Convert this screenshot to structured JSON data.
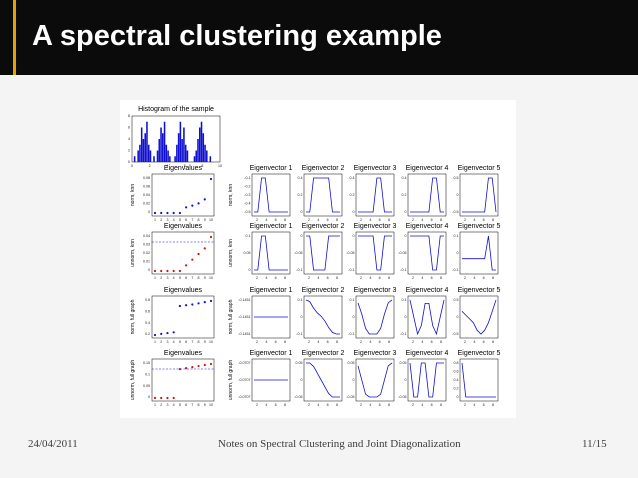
{
  "slide": {
    "title": "A spectral clustering example",
    "footer_date": "24/04/2011",
    "footer_notes": "Notes on Spectral Clustering and Joint Diagonalization",
    "footer_page": "11/15"
  },
  "colors": {
    "accent": "#e8a100",
    "header_bg": "#0b0b0b",
    "plot_blue": "#1010d0",
    "plot_red": "#d01010"
  },
  "figure": {
    "histogram": {
      "title": "Histogram of the sample",
      "x_ticks": [
        "0",
        "2",
        "4",
        "6",
        "8",
        "10"
      ],
      "y_ticks": [
        "0",
        "2",
        "4",
        "6",
        "8"
      ],
      "counts": [
        0,
        1,
        0,
        2,
        3,
        6,
        4,
        5,
        7,
        3,
        2,
        0,
        1,
        0,
        2,
        4,
        6,
        5,
        7,
        3,
        2,
        1,
        0,
        0,
        1,
        3,
        5,
        7,
        4,
        6,
        3,
        2,
        0,
        0,
        0,
        1,
        2,
        4,
        6,
        7,
        5,
        3,
        2,
        0,
        1,
        0,
        0,
        0,
        0,
        0
      ]
    },
    "rows": [
      {
        "ylabel_eig": "norm, knn",
        "ylabel_vec": "norm, knn",
        "eig_title": "Eigenvalues",
        "eig_yticks": [
          "0.08",
          "0.06",
          "0.04",
          "0.02",
          "0"
        ],
        "eig_values": [
          0.0,
          0.0,
          0.0,
          0.0,
          0.0,
          0.01,
          0.013,
          0.017,
          0.024,
          0.06
        ],
        "eig_color": "blue",
        "vec_titles": [
          "Eigenvector 1",
          "Eigenvector 2",
          "Eigenvector 3",
          "Eigenvector 4",
          "Eigenvector 5"
        ],
        "vec_yticks": [
          [
            "-0.1",
            "-0.2",
            "-0.3",
            "-0.4",
            "-0.5"
          ],
          [
            "0.4",
            "0.2",
            "0"
          ],
          [
            "0.4",
            "0.2",
            "0"
          ],
          [
            "0.4",
            "0.2",
            "0"
          ],
          [
            "0.5",
            "0",
            "-0.5"
          ]
        ],
        "vec_x_ticks": [
          "2",
          "4",
          "6",
          "8"
        ],
        "vectors": [
          [
            -0.55,
            -0.55,
            -0.1,
            -0.1,
            -0.55,
            -0.55,
            -0.55,
            -0.55,
            -0.55,
            -0.55
          ],
          [
            0,
            0,
            0.4,
            0.4,
            0.4,
            0.4,
            0.4,
            0,
            0,
            0
          ],
          [
            0,
            0,
            0,
            0,
            0,
            0.4,
            0.4,
            0,
            0,
            0
          ],
          [
            0,
            0,
            0,
            0,
            0,
            0,
            0.4,
            0.4,
            0,
            0
          ],
          [
            0,
            0,
            0,
            0,
            0,
            0,
            0,
            0.5,
            0.5,
            0
          ]
        ]
      },
      {
        "ylabel_eig": "unnorm, knn",
        "ylabel_vec": "unnorm, knn",
        "eig_title": "Eigenvalues",
        "eig_yticks": [
          "0.04",
          "0.03",
          "0.02",
          "0.01",
          "0"
        ],
        "eig_values": [
          0.0,
          0.0,
          0.0,
          0.0,
          0.0,
          0.001,
          0.002,
          0.003,
          0.004,
          0.006
        ],
        "eig_color": "red",
        "vec_titles": [
          "Eigenvector 1",
          "Eigenvector 2",
          "Eigenvector 3",
          "Eigenvector 4",
          "Eigenvector 5"
        ],
        "vec_yticks": [
          [
            "0.1",
            "0.05",
            "0"
          ],
          [
            "0",
            "-0.05",
            "-0.1"
          ],
          [
            "0",
            "-0.05",
            "-0.1"
          ],
          [
            "0",
            "-0.05",
            "-0.1"
          ],
          [
            "0.1",
            "0",
            "-0.1"
          ]
        ],
        "vec_x_ticks": [
          "2",
          "4",
          "6",
          "8"
        ],
        "vectors": [
          [
            0,
            0,
            0.1,
            0.1,
            0,
            0,
            0,
            0,
            0,
            0
          ],
          [
            0,
            0,
            -0.1,
            -0.1,
            -0.1,
            -0.1,
            0,
            0,
            0,
            0
          ],
          [
            0,
            0,
            0,
            0,
            0,
            -0.1,
            -0.1,
            0,
            0,
            0
          ],
          [
            0,
            0,
            0,
            0,
            0,
            0,
            -0.1,
            -0.1,
            0,
            0
          ],
          [
            0,
            0,
            0,
            0,
            0,
            0,
            0,
            0.1,
            -0.05,
            -0.05
          ]
        ]
      },
      {
        "ylabel_eig": "norm, full graph",
        "ylabel_vec": "norm, full graph",
        "eig_title": "Eigenvalues",
        "eig_yticks": [
          "0.8",
          "0.6",
          "0.4",
          "0.2"
        ],
        "eig_values": [
          0.0,
          0.03,
          0.05,
          0.07,
          0.75,
          0.77,
          0.79,
          0.82,
          0.85,
          0.88
        ],
        "eig_color": "blue",
        "vec_titles": [
          "Eigenvector 1",
          "Eigenvector 2",
          "Eigenvector 3",
          "Eigenvector 4",
          "Eigenvector 5"
        ],
        "vec_yticks": [
          [
            "-0.1451",
            "-0.1451",
            "-0.1451"
          ],
          [
            "0.1",
            "0",
            "-0.1"
          ],
          [
            "0.1",
            "0",
            "-0.1"
          ],
          [
            "0.1",
            "0",
            "-0.1"
          ],
          [
            "0.5",
            "0",
            "-0.5"
          ]
        ],
        "vec_x_ticks": [
          "2",
          "4",
          "6",
          "8"
        ],
        "vectors": [
          [
            -0.1451,
            -0.1451,
            -0.1451,
            -0.1451,
            -0.1451,
            -0.1451,
            -0.1451,
            -0.1451,
            -0.1451,
            -0.1451
          ],
          [
            0.1,
            0.09,
            0.05,
            0.02,
            0,
            -0.03,
            -0.07,
            -0.1,
            -0.11,
            -0.11
          ],
          [
            0.1,
            0.02,
            -0.08,
            -0.12,
            -0.12,
            -0.12,
            -0.08,
            0.02,
            0.1,
            0.12
          ],
          [
            0.1,
            0.0,
            -0.1,
            -0.05,
            0.08,
            0.08,
            -0.05,
            -0.1,
            0.0,
            0.1
          ],
          [
            0.2,
            0.1,
            0.0,
            -0.1,
            -0.3,
            -0.4,
            -0.3,
            -0.1,
            0.2,
            0.5
          ]
        ]
      },
      {
        "ylabel_eig": "unnorm, full graph",
        "ylabel_vec": "unnorm, full graph",
        "eig_title": "Eigenvalues",
        "eig_yticks": [
          "0.15",
          "0.1",
          "0.05",
          "0"
        ],
        "eig_values": [
          0.0,
          0.0,
          0.0,
          0.0,
          0.14,
          0.145,
          0.15,
          0.155,
          0.16,
          0.165
        ],
        "eig_color": "red",
        "vec_titles": [
          "Eigenvector 1",
          "Eigenvector 2",
          "Eigenvector 3",
          "Eigenvector 4",
          "Eigenvector 5"
        ],
        "vec_yticks": [
          [
            "-0.0707",
            "-0.0707",
            "-0.0707"
          ],
          [
            "0.05",
            "0",
            "-0.05"
          ],
          [
            "0.05",
            "0",
            "-0.05"
          ],
          [
            "0.05",
            "0",
            "-0.05"
          ],
          [
            "0.8",
            "0.6",
            "0.4",
            "0.2",
            "0"
          ]
        ],
        "vec_x_ticks": [
          "2",
          "4",
          "6",
          "8"
        ],
        "vectors": [
          [
            -0.0707,
            -0.0707,
            -0.0707,
            -0.0707,
            -0.0707,
            -0.0707,
            -0.0707,
            -0.0707,
            -0.0707,
            -0.0707
          ],
          [
            0.05,
            0.05,
            0.04,
            0.02,
            0,
            -0.02,
            -0.04,
            -0.05,
            -0.05,
            -0.05
          ],
          [
            0.05,
            0.0,
            -0.05,
            -0.06,
            -0.06,
            -0.06,
            -0.05,
            0.0,
            0.05,
            0.06
          ],
          [
            0.05,
            -0.05,
            -0.05,
            0.05,
            0.05,
            -0.05,
            -0.05,
            0.05,
            0.05,
            0.05
          ],
          [
            0.8,
            0.0,
            0.0,
            0.0,
            0.0,
            0.0,
            0.0,
            0.0,
            0.0,
            0.0
          ]
        ]
      }
    ],
    "eig_x_ticks": [
      "1",
      "2",
      "3",
      "4",
      "5",
      "6",
      "7",
      "8",
      "9",
      "10"
    ]
  }
}
